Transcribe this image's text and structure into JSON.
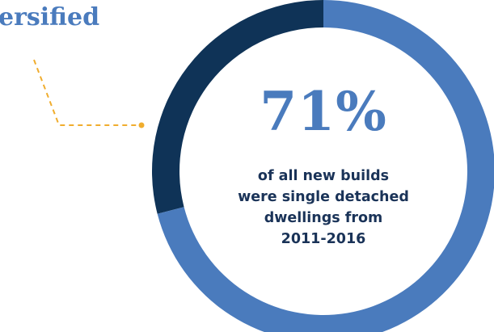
{
  "heading": "ersified",
  "colors": {
    "accent": "#4a7bbd",
    "dark_segment": "#0f3357",
    "leader_line": "#f0ad2e",
    "caption_text": "#1a3358"
  },
  "chart_data": {
    "type": "pie",
    "style": "donut",
    "slices": [
      {
        "value": 71,
        "color": "#4a7bbd"
      },
      {
        "value": 29,
        "color": "#0f3357"
      }
    ],
    "center_value": "71%",
    "center_caption": [
      "of all new builds",
      "were single detached",
      "dwellings from",
      "2011-2016"
    ]
  }
}
